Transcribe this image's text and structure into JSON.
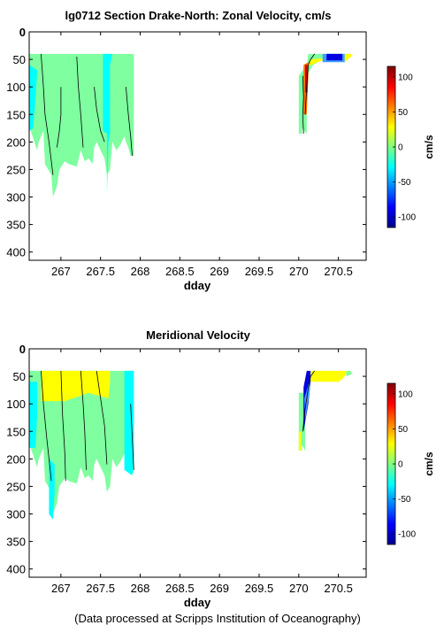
{
  "footer": "(Data processed at Scripps Institution of Oceanography)",
  "colors": {
    "fill_green": "#7fffa0",
    "fill_cyan": "#00ffff",
    "fill_yellow": "#ffff00",
    "fill_orange": "#ff7000",
    "fill_red": "#d00000",
    "fill_blue": "#0000e0",
    "fill_lightblue": "#40a0ff",
    "contour": "#000000"
  },
  "chart_data": [
    {
      "type": "heatmap",
      "title": "lg0712 Section Drake-North: Zonal Velocity, cm/s",
      "xlabel": "dday",
      "ylabel": "",
      "xlim": [
        266.6,
        270.85
      ],
      "ylim": [
        0,
        415
      ],
      "y_reversed": true,
      "xticks": [
        267,
        267.5,
        268,
        268.5,
        269,
        269.5,
        270,
        270.5
      ],
      "xtick_labels": [
        "267",
        "267.5",
        "268",
        "268.5",
        "269",
        "269.5",
        "270",
        "270.5"
      ],
      "yticks": [
        0,
        50,
        100,
        150,
        200,
        250,
        300,
        350,
        400
      ],
      "ytick_labels": [
        "0",
        "50",
        "100",
        "150",
        "200",
        "250",
        "300",
        "350",
        "400"
      ],
      "colorbar": {
        "label": "cm/s",
        "range": [
          -115,
          115
        ],
        "ticks": [
          100,
          50,
          0,
          -50,
          -100
        ],
        "tick_labels": [
          "100",
          "50",
          "0",
          "-50",
          "-100"
        ]
      },
      "regions": [
        {
          "color": "fill_green",
          "x": [
            266.6,
            266.62,
            266.7,
            266.72,
            266.78,
            266.8,
            266.88,
            266.9,
            266.95,
            266.98,
            267.05,
            267.1,
            267.2,
            267.25,
            267.3,
            267.35,
            267.4,
            267.42,
            267.45,
            267.5,
            267.55,
            267.58,
            267.62,
            267.65,
            267.7,
            267.75,
            267.8,
            267.82,
            267.85,
            267.88,
            267.92,
            267.92,
            266.6
          ],
          "y": [
            40,
            180,
            215,
            200,
            180,
            240,
            260,
            300,
            280,
            250,
            235,
            240,
            245,
            215,
            235,
            230,
            240,
            210,
            200,
            215,
            230,
            260,
            250,
            200,
            215,
            205,
            190,
            200,
            210,
            225,
            225,
            40,
            40
          ]
        },
        {
          "color": "fill_cyan",
          "x": [
            267.53,
            267.53,
            267.58,
            267.58,
            267.6,
            267.62,
            267.62,
            267.65
          ],
          "y": [
            40,
            180,
            185,
            295,
            200,
            185,
            60,
            40
          ]
        },
        {
          "color": "fill_cyan",
          "x": [
            266.6,
            266.6,
            266.65,
            266.68,
            266.7
          ],
          "y": [
            60,
            180,
            175,
            120,
            70
          ]
        },
        {
          "color": "fill_green",
          "x": [
            270.0,
            270.0,
            270.04,
            270.04,
            270.1,
            270.1,
            270.18,
            270.3,
            270.6,
            270.65,
            270.65,
            270.12,
            270.1,
            270.0
          ],
          "y": [
            80,
            185,
            185,
            175,
            185,
            80,
            60,
            50,
            50,
            45,
            40,
            40,
            60,
            80
          ]
        },
        {
          "color": "fill_orange",
          "x": [
            270.06,
            270.06,
            270.1,
            270.12,
            270.12
          ],
          "y": [
            60,
            150,
            150,
            80,
            55
          ]
        },
        {
          "color": "fill_red",
          "x": [
            270.08,
            270.08,
            270.11,
            270.11
          ],
          "y": [
            60,
            110,
            110,
            60
          ]
        },
        {
          "color": "fill_yellow",
          "x": [
            270.12,
            270.15,
            270.3,
            270.3,
            270.12
          ],
          "y": [
            60,
            50,
            48,
            52,
            62
          ]
        },
        {
          "color": "fill_lightblue",
          "x": [
            270.3,
            270.3,
            270.58,
            270.58
          ],
          "y": [
            40,
            55,
            55,
            40
          ]
        },
        {
          "color": "fill_blue",
          "x": [
            270.35,
            270.35,
            270.55,
            270.55
          ],
          "y": [
            40,
            52,
            52,
            40
          ]
        },
        {
          "color": "fill_yellow",
          "x": [
            270.58,
            270.58,
            270.68,
            270.65
          ],
          "y": [
            40,
            55,
            42,
            40
          ]
        }
      ],
      "contours": [
        {
          "x": [
            266.75,
            266.78,
            266.8,
            266.85,
            266.9
          ],
          "y": [
            40,
            100,
            150,
            200,
            260
          ]
        },
        {
          "x": [
            266.95,
            266.98,
            267.0,
            267.0
          ],
          "y": [
            210,
            180,
            150,
            100
          ]
        },
        {
          "x": [
            267.2,
            267.22,
            267.25,
            267.28
          ],
          "y": [
            45,
            100,
            150,
            210
          ]
        },
        {
          "x": [
            267.42,
            267.45,
            267.5,
            267.55
          ],
          "y": [
            100,
            140,
            180,
            200
          ]
        },
        {
          "x": [
            267.82,
            267.85,
            267.88,
            267.9
          ],
          "y": [
            100,
            150,
            190,
            225
          ]
        },
        {
          "x": [
            270.05,
            270.06,
            270.05,
            270.06
          ],
          "y": [
            80,
            120,
            150,
            185
          ]
        },
        {
          "x": [
            270.08,
            270.1,
            270.12,
            270.15,
            270.2
          ],
          "y": [
            150,
            100,
            60,
            50,
            40
          ]
        }
      ]
    },
    {
      "type": "heatmap",
      "title": "Meridional Velocity",
      "xlabel": "dday",
      "ylabel": "",
      "xlim": [
        266.6,
        270.85
      ],
      "ylim": [
        0,
        415
      ],
      "y_reversed": true,
      "xticks": [
        267,
        267.5,
        268,
        268.5,
        269,
        269.5,
        270,
        270.5
      ],
      "xtick_labels": [
        "267",
        "267.5",
        "268",
        "268.5",
        "269",
        "269.5",
        "270",
        "270.5"
      ],
      "yticks": [
        0,
        50,
        100,
        150,
        200,
        250,
        300,
        350,
        400
      ],
      "ytick_labels": [
        "0",
        "50",
        "100",
        "150",
        "200",
        "250",
        "300",
        "350",
        "400"
      ],
      "colorbar": {
        "label": "cm/s",
        "range": [
          -115,
          115
        ],
        "ticks": [
          100,
          50,
          0,
          -50,
          -100
        ],
        "tick_labels": [
          "100",
          "50",
          "0",
          "-50",
          "-100"
        ]
      },
      "regions": [
        {
          "color": "fill_green",
          "x": [
            266.6,
            266.62,
            266.7,
            266.72,
            266.78,
            266.8,
            266.88,
            266.9,
            266.95,
            266.98,
            267.05,
            267.1,
            267.2,
            267.25,
            267.3,
            267.35,
            267.4,
            267.42,
            267.45,
            267.5,
            267.55,
            267.58,
            267.62,
            267.65,
            267.7,
            267.75,
            267.8,
            267.82,
            267.85,
            267.88,
            267.92,
            267.92,
            266.6
          ],
          "y": [
            40,
            180,
            215,
            200,
            180,
            240,
            260,
            300,
            280,
            250,
            235,
            240,
            245,
            215,
            235,
            230,
            240,
            210,
            200,
            215,
            230,
            260,
            250,
            200,
            215,
            205,
            190,
            200,
            210,
            225,
            225,
            40,
            40
          ]
        },
        {
          "color": "fill_yellow",
          "x": [
            266.75,
            266.75,
            267.05,
            267.35,
            267.6,
            267.62,
            267.62
          ],
          "y": [
            40,
            95,
            95,
            80,
            90,
            60,
            40
          ]
        },
        {
          "color": "fill_cyan",
          "x": [
            266.6,
            266.6,
            266.68,
            266.7,
            266.7
          ],
          "y": [
            60,
            180,
            180,
            120,
            60
          ]
        },
        {
          "color": "fill_cyan",
          "x": [
            266.85,
            266.85,
            266.9,
            266.92,
            266.92
          ],
          "y": [
            200,
            300,
            310,
            260,
            210
          ]
        },
        {
          "color": "fill_cyan",
          "x": [
            267.8,
            267.8,
            267.9,
            267.92,
            267.92
          ],
          "y": [
            40,
            220,
            230,
            210,
            40
          ]
        },
        {
          "color": "fill_green",
          "x": [
            270.0,
            270.0,
            270.04,
            270.04,
            270.08,
            270.08,
            270.0
          ],
          "y": [
            80,
            185,
            185,
            175,
            185,
            80,
            80
          ]
        },
        {
          "color": "fill_yellow",
          "x": [
            270.0,
            270.0,
            270.03,
            270.03
          ],
          "y": [
            150,
            185,
            185,
            150
          ]
        },
        {
          "color": "fill_blue",
          "x": [
            270.06,
            270.06,
            270.12,
            270.15,
            270.15,
            270.1
          ],
          "y": [
            70,
            150,
            100,
            60,
            40,
            40
          ]
        },
        {
          "color": "fill_lightblue",
          "x": [
            270.07,
            270.08,
            270.14,
            270.14
          ],
          "y": [
            90,
            130,
            75,
            55
          ]
        },
        {
          "color": "fill_yellow",
          "x": [
            270.15,
            270.15,
            270.5,
            270.55,
            270.6,
            270.6
          ],
          "y": [
            40,
            60,
            60,
            55,
            45,
            40
          ]
        },
        {
          "color": "fill_green",
          "x": [
            270.6,
            270.6,
            270.68,
            270.65
          ],
          "y": [
            40,
            50,
            45,
            40
          ]
        }
      ],
      "contours": [
        {
          "x": [
            266.75,
            266.78,
            266.82,
            266.88
          ],
          "y": [
            40,
            100,
            160,
            240
          ]
        },
        {
          "x": [
            267.0,
            267.02,
            267.05,
            267.06
          ],
          "y": [
            40,
            120,
            190,
            240
          ]
        },
        {
          "x": [
            267.25,
            267.28,
            267.3,
            267.32
          ],
          "y": [
            40,
            100,
            150,
            220
          ]
        },
        {
          "x": [
            267.45,
            267.5,
            267.55,
            267.58
          ],
          "y": [
            40,
            90,
            140,
            210
          ]
        },
        {
          "x": [
            267.88,
            267.9,
            267.92
          ],
          "y": [
            100,
            160,
            220
          ]
        },
        {
          "x": [
            270.05,
            270.08,
            270.12,
            270.15,
            270.2
          ],
          "y": [
            150,
            110,
            70,
            50,
            40
          ]
        }
      ]
    }
  ]
}
